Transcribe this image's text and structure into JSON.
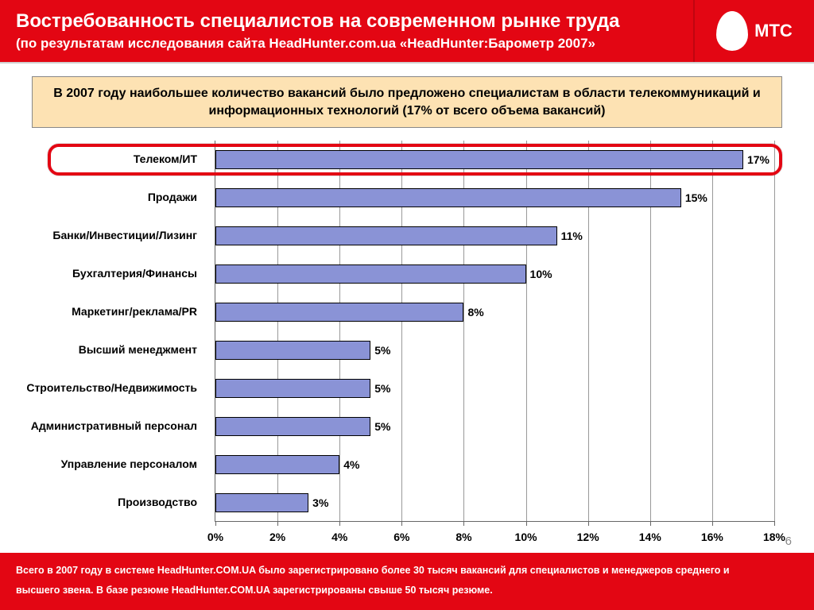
{
  "header": {
    "title": "Востребованность специалистов на современном рынке труда",
    "subtitle": "(по результатам исследования сайта HeadHunter.com.ua «HeadHunter:Барометр 2007»",
    "logo_text": "МТС"
  },
  "callout": "В 2007 году наибольшее количество вакансий было предложено специалистам в области телекоммуникаций и информационных технологий (17% от всего объема вакансий)",
  "chart": {
    "type": "bar-horizontal",
    "x_max_pct": 18,
    "x_tick_step": 2,
    "bar_color": "#8a93d6",
    "bar_border": "#000000",
    "grid_color": "#999999",
    "label_fontsize": 14,
    "highlight_index": 0,
    "highlight_color": "#e30613",
    "categories": [
      {
        "label": "Телеком/ИТ",
        "value": 17,
        "value_label": "17%"
      },
      {
        "label": "Продажи",
        "value": 15,
        "value_label": "15%"
      },
      {
        "label": "Банки/Инвестиции/Лизинг",
        "value": 11,
        "value_label": "11%"
      },
      {
        "label": "Бухгалтерия/Финансы",
        "value": 10,
        "value_label": "10%"
      },
      {
        "label": "Маркетинг/реклама/PR",
        "value": 8,
        "value_label": "8%"
      },
      {
        "label": "Высший менеджмент",
        "value": 5,
        "value_label": "5%"
      },
      {
        "label": "Строительство/Недвижимость",
        "value": 5,
        "value_label": "5%"
      },
      {
        "label": "Административный персонал",
        "value": 5,
        "value_label": "5%"
      },
      {
        "label": "Управление персоналом",
        "value": 4,
        "value_label": "4%"
      },
      {
        "label": "Производство",
        "value": 3,
        "value_label": "3%"
      }
    ],
    "xlabels": [
      "0%",
      "2%",
      "4%",
      "6%",
      "8%",
      "10%",
      "12%",
      "14%",
      "16%",
      "18%"
    ]
  },
  "footer": {
    "line1": "Всего в 2007 году в системе HeadHunter.COM.UA было зарегистрировано более 30 тысяч вакансий для специалистов и менеджеров среднего и",
    "line2": "высшего звена. В базе резюме HeadHunter.COM.UA зарегистрированы свыше 50 тысяч резюме."
  },
  "page_number": "6"
}
